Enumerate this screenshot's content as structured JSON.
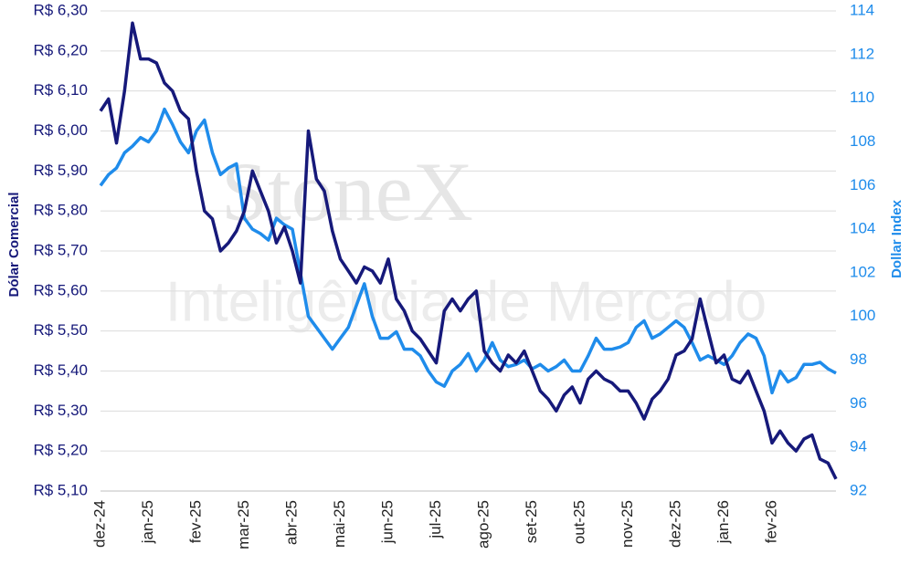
{
  "chart_data": {
    "type": "line",
    "watermark": "StoneX",
    "watermark_sub": "Inteligência de Mercado",
    "y_label": "Dólar Comercial",
    "y2_label": "Dollar Index",
    "categories": [
      "dez-24",
      null,
      null,
      null,
      null,
      null,
      "jan-25",
      null,
      null,
      null,
      null,
      null,
      "fev-25",
      null,
      null,
      null,
      null,
      null,
      "mar-25",
      null,
      null,
      null,
      null,
      null,
      "abr-25",
      null,
      null,
      null,
      null,
      null,
      "mai-25",
      null,
      null,
      null,
      null,
      null,
      "jun-25",
      null,
      null,
      null,
      null,
      null,
      "jul-25",
      null,
      null,
      null,
      null,
      null,
      "ago-25",
      null,
      null,
      null,
      null,
      null,
      "set-25",
      null,
      null,
      null,
      null,
      null,
      "out-25",
      null,
      null,
      null,
      null,
      null,
      "nov-25",
      null,
      null,
      null,
      null,
      null,
      "dez-25",
      null,
      null,
      null,
      null,
      null,
      "jan-26",
      null,
      null,
      null,
      null,
      null,
      "fev-26",
      null,
      null,
      null,
      null,
      null,
      null,
      null,
      null
    ],
    "series": [
      {
        "name": "Dólar Comercial",
        "color": "#16197a",
        "values": [
          6.05,
          6.08,
          5.97,
          6.1,
          6.27,
          6.18,
          6.18,
          6.17,
          6.12,
          6.1,
          6.05,
          6.03,
          5.9,
          5.8,
          5.78,
          5.7,
          5.72,
          5.75,
          5.8,
          5.9,
          5.85,
          5.8,
          5.72,
          5.76,
          5.7,
          5.62,
          6.0,
          5.88,
          5.85,
          5.75,
          5.68,
          5.65,
          5.62,
          5.66,
          5.65,
          5.62,
          5.68,
          5.58,
          5.55,
          5.5,
          5.48,
          5.45,
          5.42,
          5.55,
          5.58,
          5.55,
          5.58,
          5.6,
          5.45,
          5.42,
          5.4,
          5.44,
          5.42,
          5.45,
          5.4,
          5.35,
          5.33,
          5.3,
          5.34,
          5.36,
          5.32,
          5.38,
          5.4,
          5.38,
          5.37,
          5.35,
          5.35,
          5.32,
          5.28,
          5.33,
          5.35,
          5.38,
          5.44,
          5.45,
          5.48,
          5.58,
          5.5,
          5.42,
          5.44,
          5.38,
          5.37,
          5.4,
          5.35,
          5.3,
          5.22,
          5.25,
          5.22,
          5.2,
          5.23,
          5.24,
          5.18,
          5.17,
          5.13
        ]
      },
      {
        "name": "Dollar Index",
        "color": "#1f8ceb",
        "axis": "y2",
        "values": [
          106.0,
          106.5,
          106.8,
          107.5,
          107.8,
          108.2,
          108.0,
          108.5,
          109.5,
          108.8,
          108.0,
          107.5,
          108.5,
          109.0,
          107.5,
          106.5,
          106.8,
          107.0,
          104.5,
          104.0,
          103.8,
          103.5,
          104.5,
          104.2,
          104.0,
          102.0,
          100.0,
          99.5,
          99.0,
          98.5,
          99.0,
          99.5,
          100.5,
          101.5,
          100.0,
          99.0,
          99.0,
          99.3,
          98.5,
          98.5,
          98.2,
          97.5,
          97.0,
          96.8,
          97.5,
          97.8,
          98.3,
          97.5,
          98.0,
          98.8,
          98.0,
          97.7,
          97.8,
          98.0,
          97.6,
          97.8,
          97.5,
          97.7,
          98.0,
          97.5,
          97.5,
          98.2,
          99.0,
          98.5,
          98.5,
          98.6,
          98.8,
          99.5,
          99.8,
          99.0,
          99.2,
          99.5,
          99.8,
          99.5,
          98.8,
          98.0,
          98.2,
          98.0,
          97.8,
          98.2,
          98.8,
          99.2,
          99.0,
          98.2,
          96.5,
          97.5,
          97.0,
          97.2,
          97.8,
          97.8,
          97.9,
          97.6,
          97.4
        ]
      }
    ],
    "ylim": [
      5.1,
      6.3
    ],
    "yticks": [
      {
        "value": 5.1,
        "label": "R$ 5,10"
      },
      {
        "value": 5.2,
        "label": "R$ 5,20"
      },
      {
        "value": 5.3,
        "label": "R$ 5,30"
      },
      {
        "value": 5.4,
        "label": "R$ 5,40"
      },
      {
        "value": 5.5,
        "label": "R$ 5,50"
      },
      {
        "value": 5.6,
        "label": "R$ 5,60"
      },
      {
        "value": 5.7,
        "label": "R$ 5,70"
      },
      {
        "value": 5.8,
        "label": "R$ 5,80"
      },
      {
        "value": 5.9,
        "label": "R$ 5,90"
      },
      {
        "value": 6.0,
        "label": "R$ 6,00"
      },
      {
        "value": 6.1,
        "label": "R$ 6,10"
      },
      {
        "value": 6.2,
        "label": "R$ 6,20"
      },
      {
        "value": 6.3,
        "label": "R$ 6,30"
      }
    ],
    "y2lim": [
      92,
      114
    ],
    "y2ticks": [
      92,
      94,
      96,
      98,
      100,
      102,
      104,
      106,
      108,
      110,
      112,
      114
    ],
    "grid": true
  }
}
